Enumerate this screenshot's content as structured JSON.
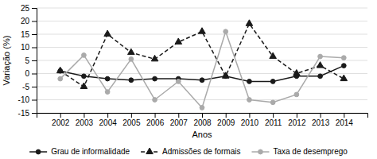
{
  "chart_data": {
    "type": "line",
    "xlabel": "Anos",
    "ylabel": "Variação (%)",
    "x": [
      2002,
      2003,
      2004,
      2005,
      2006,
      2007,
      2008,
      2009,
      2010,
      2011,
      2012,
      2013,
      2014
    ],
    "xlim": [
      2001,
      2015
    ],
    "xticks": [
      2002,
      2003,
      2004,
      2005,
      2006,
      2007,
      2008,
      2009,
      2010,
      2011,
      2012,
      2013,
      2014
    ],
    "ylim": [
      -15,
      25
    ],
    "yticks": [
      -15,
      -10,
      -5,
      0,
      5,
      10,
      15,
      20,
      25
    ],
    "grid": true,
    "legend": "bottom",
    "series": [
      {
        "name": "Grau de informalidade",
        "color": "#1a1a1a",
        "marker": "circle",
        "line_style": "solid",
        "values": [
          1,
          -1,
          -2,
          -2.5,
          -2,
          -2,
          -2.5,
          -1,
          -3,
          -3,
          -1,
          -1,
          3
        ]
      },
      {
        "name": "Admissões de formais",
        "color": "#1a1a1a",
        "marker": "triangle",
        "line_style": "dashed",
        "values": [
          1,
          -5,
          15,
          8,
          5.5,
          12,
          16,
          -1,
          19,
          6.5,
          0,
          3,
          -2
        ]
      },
      {
        "name": "Taxa de desemprego",
        "color": "#aaaaaa",
        "marker": "circle",
        "line_style": "solid",
        "values": [
          -2,
          7,
          -7,
          5.5,
          -10,
          -3,
          -13,
          16,
          -10,
          -11,
          -8,
          6.5,
          6
        ]
      }
    ]
  }
}
